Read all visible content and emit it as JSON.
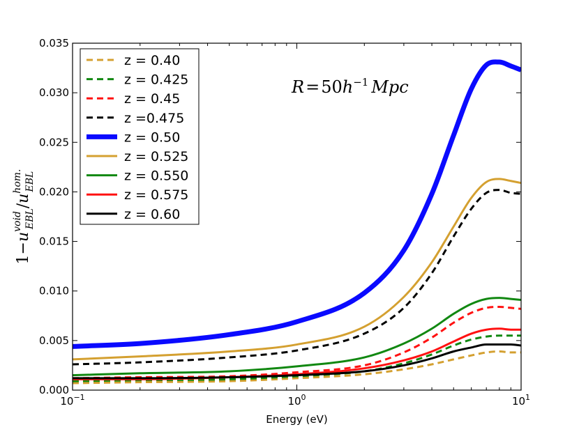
{
  "chart_data": {
    "type": "line",
    "xscale": "log",
    "xlim": [
      0.1,
      10
    ],
    "ylim": [
      0.0,
      0.035
    ],
    "xlabel": "Energy (eV)",
    "ylabel": {
      "lead": "1−",
      "sym": "u",
      "num_sup": "void",
      "num_sub": "EBL",
      "den_sup": "hom.",
      "den_sub": "EBL"
    },
    "annotation": {
      "lhs": "R",
      "eq": "=",
      "coef": "50",
      "sym": "h",
      "exp": "−1",
      "unit": "Mpc"
    },
    "x_ticks": [
      {
        "value": 0.1,
        "base": "10",
        "exp": "−1"
      },
      {
        "value": 1,
        "base": "10",
        "exp": "0"
      },
      {
        "value": 10,
        "base": "10",
        "exp": "1"
      }
    ],
    "y_ticks": [
      "0.000",
      "0.005",
      "0.010",
      "0.015",
      "0.020",
      "0.025",
      "0.030",
      "0.035"
    ],
    "x": [
      0.1,
      0.2,
      0.5,
      1,
      2,
      3,
      4,
      5,
      6,
      7,
      8,
      9,
      10
    ],
    "series": [
      {
        "name": "z = 0.40",
        "color": "#d4a030",
        "style": "dashed",
        "width": 3,
        "values": [
          0.0007,
          0.0008,
          0.0009,
          0.0012,
          0.0016,
          0.0021,
          0.0026,
          0.0031,
          0.0035,
          0.0038,
          0.0039,
          0.0038,
          0.0038
        ]
      },
      {
        "name": "z = 0.425",
        "color": "#118811",
        "style": "dashed",
        "width": 3,
        "values": [
          0.0009,
          0.001,
          0.0011,
          0.0014,
          0.0019,
          0.0027,
          0.0036,
          0.0045,
          0.0051,
          0.0054,
          0.0055,
          0.0055,
          0.0055
        ]
      },
      {
        "name": "z = 0.45",
        "color": "#ff1111",
        "style": "dashed",
        "width": 3,
        "values": [
          0.0012,
          0.0013,
          0.0014,
          0.0018,
          0.0025,
          0.0038,
          0.0053,
          0.0068,
          0.0078,
          0.0083,
          0.0084,
          0.0083,
          0.0082
        ]
      },
      {
        "name": "z =0.475",
        "color": "#000000",
        "style": "dashed",
        "width": 3,
        "values": [
          0.0026,
          0.0028,
          0.0033,
          0.004,
          0.0057,
          0.0083,
          0.0118,
          0.0155,
          0.0183,
          0.0199,
          0.0202,
          0.0199,
          0.0198
        ]
      },
      {
        "name": "z = 0.50",
        "color": "#0a0aff",
        "style": "solid",
        "width": 7,
        "values": [
          0.0044,
          0.0047,
          0.0056,
          0.0069,
          0.0098,
          0.0141,
          0.0198,
          0.0257,
          0.0304,
          0.0328,
          0.0331,
          0.0327,
          0.0323
        ]
      },
      {
        "name": "z = 0.525",
        "color": "#d4a030",
        "style": "solid",
        "width": 3,
        "values": [
          0.0031,
          0.0034,
          0.0039,
          0.0046,
          0.0064,
          0.0094,
          0.0129,
          0.0165,
          0.0194,
          0.021,
          0.0213,
          0.0211,
          0.0209
        ]
      },
      {
        "name": "z = 0.550",
        "color": "#118811",
        "style": "solid",
        "width": 3,
        "values": [
          0.0015,
          0.0017,
          0.0019,
          0.0024,
          0.0033,
          0.0047,
          0.0062,
          0.0077,
          0.0087,
          0.0092,
          0.0093,
          0.0092,
          0.0091
        ]
      },
      {
        "name": "z = 0.575",
        "color": "#ff1111",
        "style": "solid",
        "width": 3,
        "values": [
          0.0011,
          0.0011,
          0.0013,
          0.0016,
          0.0022,
          0.003,
          0.0039,
          0.0049,
          0.0057,
          0.0061,
          0.0062,
          0.0061,
          0.0061
        ]
      },
      {
        "name": "z = 0.60",
        "color": "#000000",
        "style": "solid",
        "width": 3,
        "values": [
          0.0012,
          0.0012,
          0.0013,
          0.0015,
          0.0019,
          0.0025,
          0.0032,
          0.0039,
          0.0043,
          0.0046,
          0.0046,
          0.0046,
          0.0045
        ]
      }
    ],
    "legend_position": "top-left",
    "grid": false
  }
}
